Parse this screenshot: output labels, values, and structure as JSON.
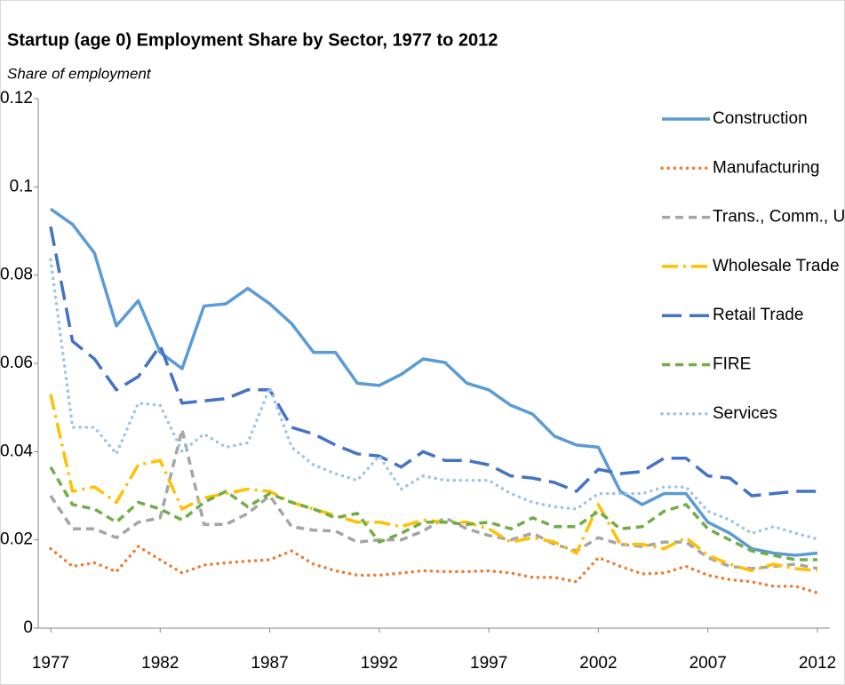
{
  "chart_data": {
    "type": "line",
    "title": "Startup (age 0) Employment Share by Sector, 1977 to 2012",
    "subtitle": "Share of employment",
    "x": [
      1977,
      1978,
      1979,
      1980,
      1981,
      1982,
      1983,
      1984,
      1985,
      1986,
      1987,
      1988,
      1989,
      1990,
      1991,
      1992,
      1993,
      1994,
      1995,
      1996,
      1997,
      1998,
      1999,
      2000,
      2001,
      2002,
      2003,
      2004,
      2005,
      2006,
      2007,
      2008,
      2009,
      2010,
      2011,
      2012
    ],
    "xlim": [
      1977,
      2012
    ],
    "xticks": [
      1977,
      1982,
      1987,
      1992,
      1997,
      2002,
      2007,
      2012
    ],
    "ylim": [
      0,
      0.12
    ],
    "yticks": [
      0,
      0.02,
      0.04,
      0.06,
      0.08,
      0.1,
      0.12
    ],
    "grid": false,
    "legend": "upper right",
    "series": [
      {
        "name": "Construction",
        "color": "#5b9bd5",
        "style": "solid",
        "values": [
          0.095,
          0.0915,
          0.085,
          0.0685,
          0.0742,
          0.0625,
          0.0588,
          0.073,
          0.0735,
          0.077,
          0.0735,
          0.069,
          0.0625,
          0.0625,
          0.0555,
          0.055,
          0.0575,
          0.061,
          0.0602,
          0.0555,
          0.054,
          0.0505,
          0.0485,
          0.0435,
          0.0415,
          0.041,
          0.031,
          0.028,
          0.0305,
          0.0305,
          0.024,
          0.0215,
          0.018,
          0.017,
          0.0165,
          0.017
        ]
      },
      {
        "name": "Manufacturing",
        "color": "#ed7d31",
        "style": "dot",
        "values": [
          0.018,
          0.014,
          0.0148,
          0.0128,
          0.0185,
          0.0155,
          0.0125,
          0.0143,
          0.0148,
          0.0152,
          0.0155,
          0.0175,
          0.0145,
          0.013,
          0.012,
          0.012,
          0.0125,
          0.013,
          0.0128,
          0.0128,
          0.013,
          0.0125,
          0.0115,
          0.0115,
          0.0105,
          0.016,
          0.014,
          0.0123,
          0.0125,
          0.014,
          0.012,
          0.011,
          0.0105,
          0.0095,
          0.0095,
          0.008
        ]
      },
      {
        "name": "Trans., Comm., Utils",
        "color": "#a5a5a5",
        "style": "dash",
        "values": [
          0.03,
          0.0225,
          0.0225,
          0.0205,
          0.024,
          0.025,
          0.045,
          0.0235,
          0.0235,
          0.026,
          0.03,
          0.023,
          0.0222,
          0.022,
          0.0195,
          0.02,
          0.02,
          0.022,
          0.025,
          0.0225,
          0.021,
          0.02,
          0.0215,
          0.019,
          0.0175,
          0.0205,
          0.019,
          0.0185,
          0.0195,
          0.0195,
          0.016,
          0.014,
          0.0135,
          0.014,
          0.0145,
          0.0135
        ]
      },
      {
        "name": "Wholesale Trade",
        "color": "#ffc000",
        "style": "dashdot",
        "values": [
          0.053,
          0.031,
          0.032,
          0.0285,
          0.037,
          0.038,
          0.027,
          0.0295,
          0.0305,
          0.0315,
          0.031,
          0.0285,
          0.027,
          0.0255,
          0.024,
          0.024,
          0.023,
          0.0245,
          0.024,
          0.024,
          0.0225,
          0.0195,
          0.0205,
          0.0195,
          0.017,
          0.028,
          0.019,
          0.019,
          0.018,
          0.0205,
          0.0165,
          0.0145,
          0.013,
          0.0145,
          0.0135,
          0.013
        ]
      },
      {
        "name": "Retail Trade",
        "color": "#4472c4",
        "style": "longdash",
        "values": [
          0.091,
          0.065,
          0.061,
          0.054,
          0.057,
          0.064,
          0.051,
          0.0515,
          0.052,
          0.054,
          0.054,
          0.0455,
          0.044,
          0.0415,
          0.0395,
          0.039,
          0.0365,
          0.04,
          0.038,
          0.038,
          0.037,
          0.0345,
          0.034,
          0.033,
          0.031,
          0.036,
          0.035,
          0.0355,
          0.0385,
          0.0385,
          0.0345,
          0.034,
          0.03,
          0.0305,
          0.031,
          0.031
        ]
      },
      {
        "name": "FIRE",
        "color": "#70ad47",
        "style": "dash",
        "values": [
          0.0365,
          0.028,
          0.027,
          0.024,
          0.0285,
          0.027,
          0.0245,
          0.0285,
          0.031,
          0.0275,
          0.0305,
          0.0285,
          0.027,
          0.025,
          0.026,
          0.0195,
          0.0215,
          0.024,
          0.024,
          0.0235,
          0.024,
          0.0225,
          0.025,
          0.023,
          0.023,
          0.0265,
          0.0225,
          0.023,
          0.0265,
          0.028,
          0.0225,
          0.02,
          0.0175,
          0.0165,
          0.0155,
          0.0155
        ]
      },
      {
        "name": "Services",
        "color": "#9dc3e6",
        "style": "dot",
        "values": [
          0.0835,
          0.0455,
          0.0455,
          0.0395,
          0.051,
          0.0505,
          0.04,
          0.044,
          0.041,
          0.042,
          0.0545,
          0.041,
          0.037,
          0.035,
          0.0335,
          0.039,
          0.0315,
          0.0345,
          0.0335,
          0.0335,
          0.0335,
          0.0305,
          0.0285,
          0.0275,
          0.027,
          0.0305,
          0.0305,
          0.0305,
          0.032,
          0.032,
          0.0265,
          0.0245,
          0.0215,
          0.023,
          0.0215,
          0.0202
        ]
      }
    ]
  }
}
